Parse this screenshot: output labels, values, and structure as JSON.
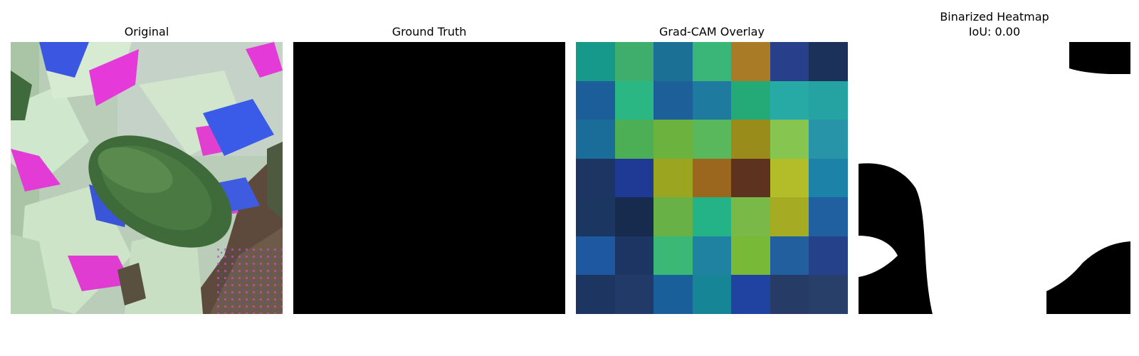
{
  "panels": [
    {
      "title": "Original",
      "image": "leaf-photo"
    },
    {
      "title": "Ground Truth",
      "image": "all-black-mask",
      "fill_color": "#000000"
    },
    {
      "title": "Grad-CAM Overlay",
      "image": "heatmap-overlay",
      "grid": [
        [
          "#16998a",
          "#3fae6c",
          "#1a7095",
          "#3ab678",
          "#a97b27",
          "#283f8b",
          "#1b3159"
        ],
        [
          "#1b5e9a",
          "#2bb784",
          "#1d5f98",
          "#1f7aa0",
          "#24aa76",
          "#27a9a6",
          "#25a3a3"
        ],
        [
          "#1b6d99",
          "#4caf56",
          "#6bb33e",
          "#5ab85c",
          "#9a8c1b",
          "#87c551",
          "#2894a7"
        ],
        [
          "#1d3562",
          "#1e3a95",
          "#9ca520",
          "#9b671e",
          "#5d331f",
          "#b3bd2a",
          "#1d82a7"
        ],
        [
          "#1c3662",
          "#172b4f",
          "#67b146",
          "#24b387",
          "#79b948",
          "#a6ab24",
          "#2060a1"
        ],
        [
          "#1e58a0",
          "#1d3563",
          "#3bb876",
          "#1e82a0",
          "#78b937",
          "#215f9f",
          "#25418a"
        ],
        [
          "#1c3661",
          "#213a67",
          "#19609a",
          "#168697",
          "#2042a0",
          "#273b67",
          "#283f6a"
        ]
      ]
    },
    {
      "title": "Binarized Heatmap\nIoU: 0.00",
      "image": "binary-mask"
    }
  ]
}
